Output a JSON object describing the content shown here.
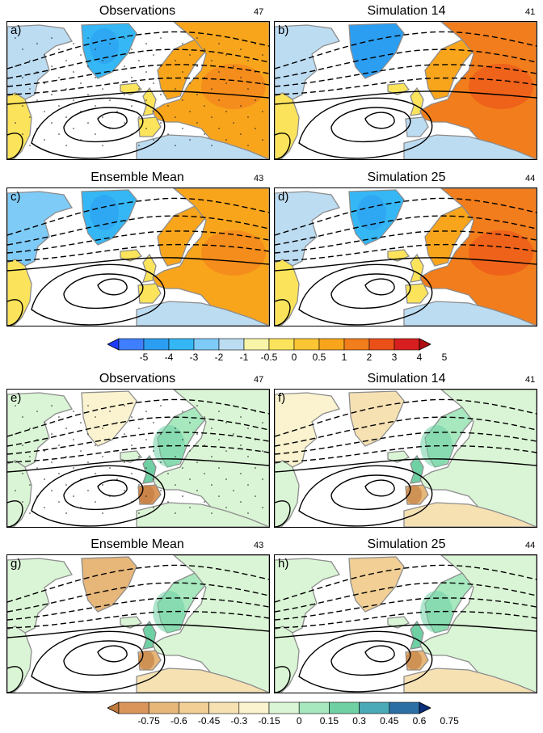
{
  "top": {
    "panels": [
      {
        "id": "a",
        "label": "a)",
        "title": "Observations",
        "number": "47"
      },
      {
        "id": "b",
        "label": "b)",
        "title": "Simulation 14",
        "number": "41"
      },
      {
        "id": "c",
        "label": "c)",
        "title": "Ensemble Mean",
        "number": "43"
      },
      {
        "id": "d",
        "label": "d)",
        "title": "Simulation 25",
        "number": "44"
      }
    ],
    "colorbar": {
      "ticks": [
        "-5",
        "-4",
        "-3",
        "-2",
        "-1",
        "-0.5",
        "0",
        "0.5",
        "1",
        "2",
        "3",
        "4",
        "5"
      ],
      "colors": [
        "#1e3cff",
        "#3f7fff",
        "#2c9ef2",
        "#35b7f5",
        "#7fcbf7",
        "#bcdcf2",
        "#f9f5a8",
        "#fbe45b",
        "#fbc534",
        "#f9a51c",
        "#f27d1c",
        "#ec5019",
        "#d81f1f",
        "#b00e12"
      ]
    }
  },
  "bottom": {
    "panels": [
      {
        "id": "e",
        "label": "e)",
        "title": "Observations",
        "number": "47"
      },
      {
        "id": "f",
        "label": "f)",
        "title": "Simulation 14",
        "number": "41"
      },
      {
        "id": "g",
        "label": "g)",
        "title": "Ensemble Mean",
        "number": "43"
      },
      {
        "id": "h",
        "label": "h)",
        "title": "Simulation 25",
        "number": "44"
      }
    ],
    "colorbar": {
      "ticks": [
        "-0.75",
        "-0.6",
        "-0.45",
        "-0.3",
        "-0.15",
        "0",
        "0.15",
        "0.3",
        "0.45",
        "0.6",
        "0.75"
      ],
      "colors": [
        "#c07a3d",
        "#d9955a",
        "#e7b679",
        "#f1cf95",
        "#f6e1b3",
        "#fbf3cf",
        "#daf5d5",
        "#a7e8be",
        "#6fd0a4",
        "#4aaab7",
        "#2b6fa5",
        "#0b2e7a"
      ]
    }
  }
}
